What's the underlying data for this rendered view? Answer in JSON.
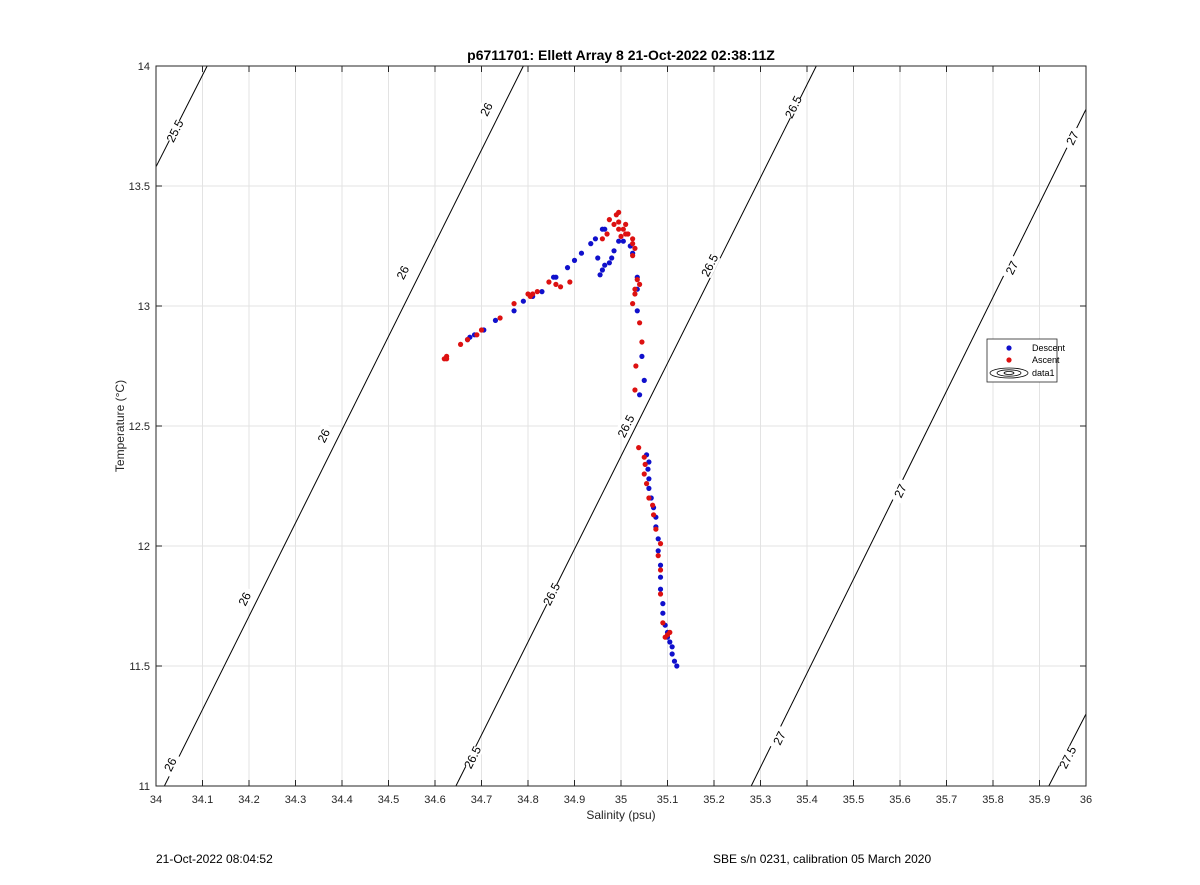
{
  "chart_data": {
    "type": "scatter",
    "title": "p6711701: Ellett Array 8 21-Oct-2022 02:38:11Z",
    "xlabel": "Salinity (psu)",
    "ylabel": "Temperature (°C)",
    "xlim": [
      34,
      36
    ],
    "ylim": [
      11,
      14
    ],
    "xticks": [
      34,
      34.1,
      34.2,
      34.3,
      34.4,
      34.5,
      34.6,
      34.7,
      34.8,
      34.9,
      35,
      35.1,
      35.2,
      35.3,
      35.4,
      35.5,
      35.6,
      35.7,
      35.8,
      35.9,
      36
    ],
    "yticks": [
      11,
      11.5,
      12,
      12.5,
      13,
      13.5,
      14
    ],
    "xtick_labels": [
      "34",
      "34.1",
      "34.2",
      "34.3",
      "34.4",
      "34.5",
      "34.6",
      "34.7",
      "34.8",
      "34.9",
      "35",
      "35.1",
      "35.2",
      "35.3",
      "35.4",
      "35.5",
      "35.6",
      "35.7",
      "35.8",
      "35.9",
      "36"
    ],
    "ytick_labels": [
      "11",
      "11.5",
      "12",
      "12.5",
      "13",
      "13.5",
      "14"
    ],
    "grid": true,
    "legend_position": "right",
    "legend": [
      "Descent",
      "Ascent",
      "data1"
    ],
    "colors": {
      "descent": "#1010cc",
      "ascent": "#dd1111",
      "contour": "#000000",
      "grid": "#e3e3e3"
    },
    "contours": [
      {
        "label": "25.5",
        "points": [
          [
            34,
            13.58
          ],
          [
            34.11,
            14
          ]
        ],
        "label_positions": [
          [
            34.04,
            13.73
          ]
        ]
      },
      {
        "label": "26",
        "points": [
          [
            34,
            10.93
          ],
          [
            34.79,
            14
          ]
        ],
        "label_positions": [
          [
            34.03,
            11.09
          ],
          [
            34.19,
            11.78
          ],
          [
            34.36,
            12.46
          ],
          [
            34.53,
            13.14
          ],
          [
            34.71,
            13.82
          ]
        ]
      },
      {
        "label": "26.5",
        "points": [
          [
            34.645,
            11
          ],
          [
            35.42,
            14
          ]
        ],
        "label_positions": [
          [
            34.68,
            11.12
          ],
          [
            34.85,
            11.8
          ],
          [
            35.01,
            12.5
          ],
          [
            35.19,
            13.17
          ],
          [
            35.37,
            13.83
          ]
        ]
      },
      {
        "label": "27",
        "points": [
          [
            35.28,
            11
          ],
          [
            36,
            13.82
          ]
        ],
        "label_positions": [
          [
            35.34,
            11.2
          ],
          [
            35.6,
            12.23
          ],
          [
            35.84,
            13.16
          ],
          [
            35.97,
            13.7
          ]
        ]
      },
      {
        "label": "27.5",
        "points": [
          [
            35.92,
            11
          ],
          [
            36,
            11.3
          ]
        ],
        "label_positions": [
          [
            35.96,
            11.12
          ]
        ]
      }
    ],
    "series": [
      {
        "name": "Descent",
        "points": [
          [
            35.12,
            11.5
          ],
          [
            35.115,
            11.52
          ],
          [
            35.11,
            11.55
          ],
          [
            35.11,
            11.58
          ],
          [
            35.105,
            11.6
          ],
          [
            35.1,
            11.62
          ],
          [
            35.1,
            11.64
          ],
          [
            35.095,
            11.67
          ],
          [
            35.09,
            11.72
          ],
          [
            35.09,
            11.76
          ],
          [
            35.085,
            11.82
          ],
          [
            35.085,
            11.87
          ],
          [
            35.085,
            11.92
          ],
          [
            35.08,
            11.98
          ],
          [
            35.08,
            12.03
          ],
          [
            35.075,
            12.08
          ],
          [
            35.075,
            12.12
          ],
          [
            35.07,
            12.16
          ],
          [
            35.065,
            12.2
          ],
          [
            35.06,
            12.24
          ],
          [
            35.06,
            12.28
          ],
          [
            35.058,
            12.32
          ],
          [
            35.06,
            12.35
          ],
          [
            35.055,
            12.38
          ],
          [
            35.04,
            12.63
          ],
          [
            35.05,
            12.69
          ],
          [
            35.045,
            12.79
          ],
          [
            35.035,
            12.98
          ],
          [
            35.035,
            13.07
          ],
          [
            35.035,
            13.12
          ],
          [
            35.025,
            13.22
          ],
          [
            35.02,
            13.25
          ],
          [
            35.005,
            13.27
          ],
          [
            34.995,
            13.27
          ],
          [
            34.985,
            13.23
          ],
          [
            34.98,
            13.2
          ],
          [
            34.975,
            13.18
          ],
          [
            34.965,
            13.17
          ],
          [
            34.96,
            13.15
          ],
          [
            34.955,
            13.13
          ],
          [
            34.95,
            13.2
          ],
          [
            34.945,
            13.28
          ],
          [
            34.935,
            13.26
          ],
          [
            34.965,
            13.32
          ],
          [
            34.96,
            13.32
          ],
          [
            34.915,
            13.22
          ],
          [
            34.9,
            13.19
          ],
          [
            34.885,
            13.16
          ],
          [
            34.86,
            13.12
          ],
          [
            34.855,
            13.12
          ],
          [
            34.83,
            13.06
          ],
          [
            34.81,
            13.04
          ],
          [
            34.79,
            13.02
          ],
          [
            34.77,
            12.98
          ],
          [
            34.73,
            12.94
          ],
          [
            34.705,
            12.9
          ],
          [
            34.685,
            12.88
          ],
          [
            34.675,
            12.87
          ],
          [
            34.67,
            12.86
          ]
        ]
      },
      {
        "name": "Ascent",
        "points": [
          [
            35.1,
            11.63
          ],
          [
            35.095,
            11.62
          ],
          [
            35.105,
            11.64
          ],
          [
            35.09,
            11.68
          ],
          [
            35.085,
            11.8
          ],
          [
            35.085,
            11.9
          ],
          [
            35.08,
            11.96
          ],
          [
            35.085,
            12.01
          ],
          [
            35.075,
            12.07
          ],
          [
            35.07,
            12.13
          ],
          [
            35.068,
            12.17
          ],
          [
            35.06,
            12.2
          ],
          [
            35.055,
            12.26
          ],
          [
            35.05,
            12.3
          ],
          [
            35.052,
            12.34
          ],
          [
            35.05,
            12.37
          ],
          [
            35.038,
            12.41
          ],
          [
            35.03,
            12.65
          ],
          [
            35.032,
            12.75
          ],
          [
            35.045,
            12.85
          ],
          [
            35.04,
            12.93
          ],
          [
            35.025,
            13.01
          ],
          [
            35.03,
            13.05
          ],
          [
            35.03,
            13.07
          ],
          [
            35.04,
            13.09
          ],
          [
            35.035,
            13.11
          ],
          [
            35.025,
            13.21
          ],
          [
            35.03,
            13.24
          ],
          [
            35.025,
            13.26
          ],
          [
            35.025,
            13.28
          ],
          [
            35.015,
            13.3
          ],
          [
            35.01,
            13.3
          ],
          [
            35.005,
            13.32
          ],
          [
            35.01,
            13.34
          ],
          [
            34.995,
            13.35
          ],
          [
            34.99,
            13.38
          ],
          [
            34.995,
            13.39
          ],
          [
            34.985,
            13.34
          ],
          [
            34.975,
            13.36
          ],
          [
            34.97,
            13.3
          ],
          [
            34.96,
            13.28
          ],
          [
            34.995,
            13.32
          ],
          [
            35.0,
            13.29
          ],
          [
            34.89,
            13.1
          ],
          [
            34.87,
            13.08
          ],
          [
            34.86,
            13.09
          ],
          [
            34.845,
            13.1
          ],
          [
            34.82,
            13.06
          ],
          [
            34.81,
            13.05
          ],
          [
            34.8,
            13.05
          ],
          [
            34.805,
            13.04
          ],
          [
            34.77,
            13.01
          ],
          [
            34.74,
            12.95
          ],
          [
            34.7,
            12.9
          ],
          [
            34.69,
            12.88
          ],
          [
            34.67,
            12.86
          ],
          [
            34.655,
            12.84
          ],
          [
            34.625,
            12.79
          ],
          [
            34.62,
            12.78
          ],
          [
            34.625,
            12.78
          ]
        ]
      }
    ]
  },
  "footer": {
    "timestamp": "21-Oct-2022 08:04:52",
    "calibration": "SBE s/n 0231, calibration 05 March 2020"
  }
}
